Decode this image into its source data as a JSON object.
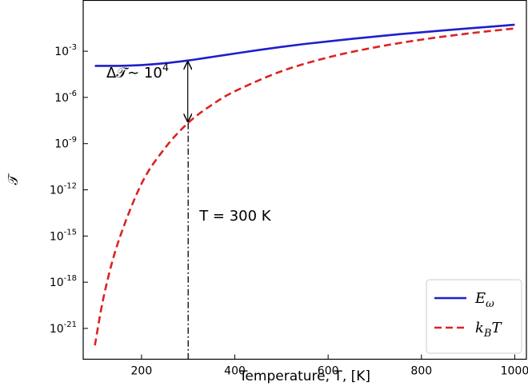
{
  "chart_data": {
    "type": "line",
    "xlabel": "Temperature, T, [K]",
    "ylabel": "𝒯",
    "xlim": [
      75,
      1025
    ],
    "ylim_log10": [
      -23,
      0.3
    ],
    "y_scale": "log",
    "x_ticks": [
      200,
      400,
      600,
      800,
      1000
    ],
    "y_ticks": [
      {
        "exp": -3,
        "label": "10",
        "sup": "-3"
      },
      {
        "exp": -6,
        "label": "10",
        "sup": "-6"
      },
      {
        "exp": -9,
        "label": "10",
        "sup": "-9"
      },
      {
        "exp": -12,
        "label": "10",
        "sup": "-12"
      },
      {
        "exp": -15,
        "label": "10",
        "sup": "-15"
      },
      {
        "exp": -18,
        "label": "10",
        "sup": "-18"
      },
      {
        "exp": -21,
        "label": "10",
        "sup": "-21"
      }
    ],
    "series": [
      {
        "name": "E_ω",
        "legend_main": "E",
        "legend_sub": "ω",
        "color": "#1f1fcc",
        "dash": "solid",
        "x": [
          100,
          150,
          200,
          250,
          300,
          350,
          400,
          450,
          500,
          550,
          600,
          650,
          700,
          750,
          800,
          850,
          900,
          950,
          1000
        ],
        "log10_y": [
          -3.95,
          -3.95,
          -3.9,
          -3.78,
          -3.6,
          -3.38,
          -3.15,
          -2.93,
          -2.72,
          -2.53,
          -2.36,
          -2.2,
          -2.05,
          -1.9,
          -1.77,
          -1.64,
          -1.52,
          -1.4,
          -1.28
        ]
      },
      {
        "name": "k_B T",
        "legend_main": "k",
        "legend_sub": "B",
        "legend_tail": "T",
        "color": "#dd2222",
        "dash": "dashed",
        "x": [
          100,
          120,
          150,
          200,
          250,
          300,
          350,
          400,
          500,
          600,
          700,
          800,
          900,
          1000
        ],
        "log10_y": [
          -22.1,
          -18.8,
          -15.4,
          -11.6,
          -9.3,
          -7.65,
          -6.5,
          -5.6,
          -4.3,
          -3.4,
          -2.75,
          -2.25,
          -1.85,
          -1.52
        ]
      }
    ],
    "vline_x": 300,
    "vline_label": "T = 300 K",
    "arrow_x": 300,
    "arrow_from_log10": -3.6,
    "arrow_to_log10": -7.65,
    "delta_main": "Δ𝒯∼ 10",
    "delta_sup": "4",
    "legend_position": "lower-right",
    "grid": false
  }
}
